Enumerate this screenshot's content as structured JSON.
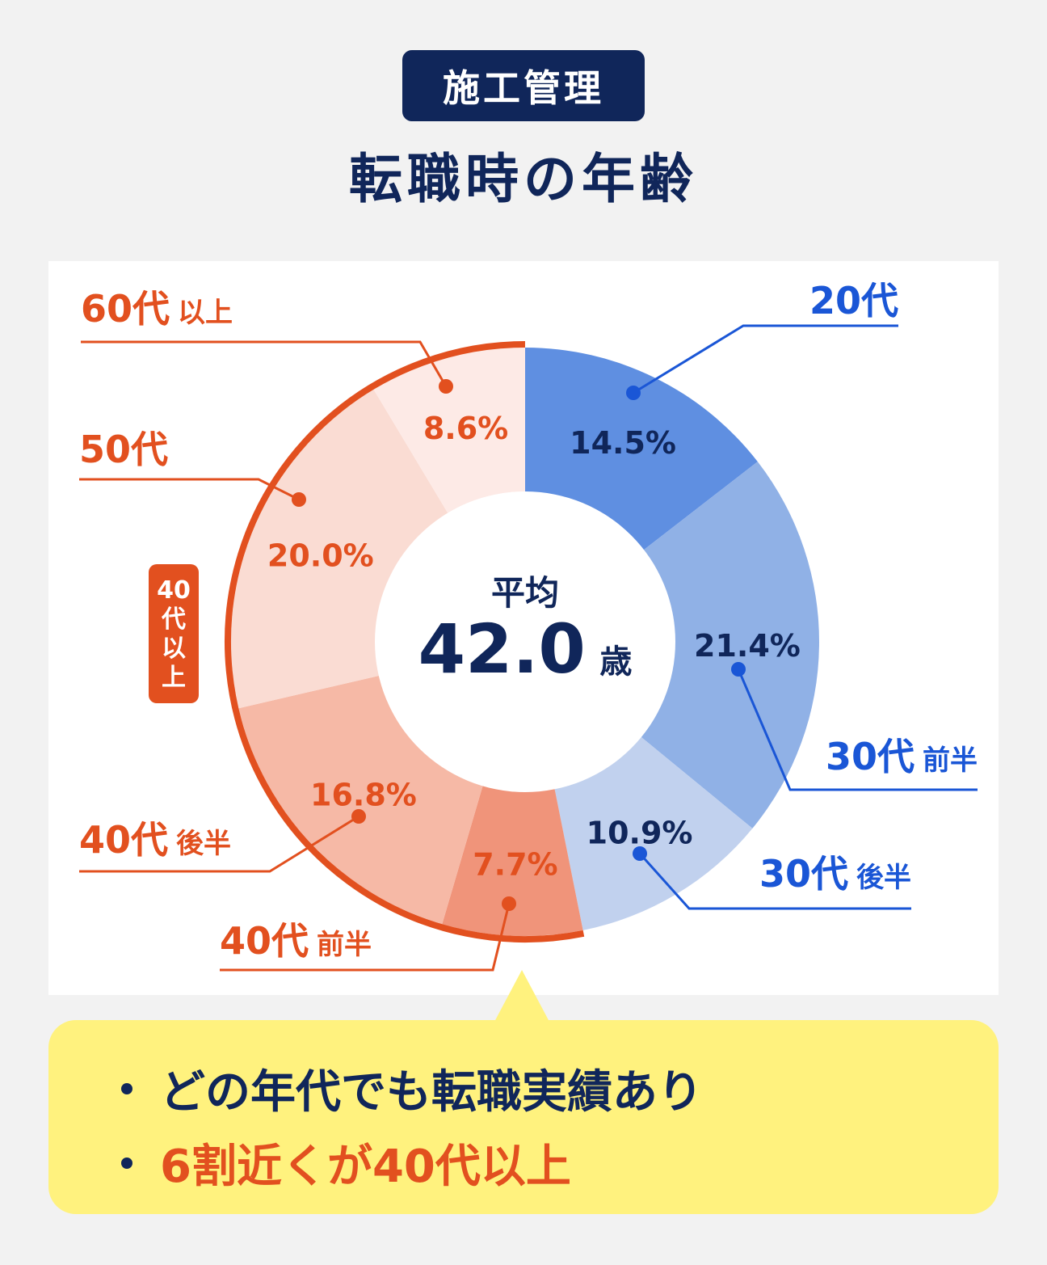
{
  "header": {
    "tag": "施工管理",
    "title": "転職時の年齢"
  },
  "chart_data": {
    "type": "pie",
    "categories": [
      "20代",
      "30代 前半",
      "30代 後半",
      "40代 前半",
      "40代 後半",
      "50代",
      "60代 以上"
    ],
    "values": [
      14.5,
      21.4,
      10.9,
      7.7,
      16.8,
      20.0,
      8.6
    ],
    "value_labels": [
      "14.5%",
      "21.4%",
      "10.9%",
      "7.7%",
      "16.8%",
      "20.0%",
      "8.6%"
    ],
    "label_main": [
      "20代",
      "30代",
      "30代",
      "40代",
      "40代",
      "50代",
      "60代"
    ],
    "label_sub": [
      "",
      "前半",
      "後半",
      "前半",
      "後半",
      "",
      "以上"
    ],
    "colors": [
      "#5f8fe1",
      "#90b1e6",
      "#c1d1ee",
      "#f0947a",
      "#f6b9a6",
      "#fadcd3",
      "#fdeae6"
    ],
    "label_colors": [
      "#10265a",
      "#10265a",
      "#10265a",
      "#e2501f",
      "#e2501f",
      "#e2501f",
      "#e2501f"
    ],
    "leader_colors": [
      "#1a56d6",
      "#1a56d6",
      "#1a56d6",
      "#e2501f",
      "#e2501f",
      "#e2501f",
      "#e2501f"
    ],
    "center": {
      "label": "平均",
      "value": "42.0",
      "unit": "歳"
    },
    "group_label": "40代以上",
    "group_color": "#e2501f"
  },
  "summary": {
    "points": [
      "どの年代でも転職実績あり",
      "6割近くが40代以上"
    ]
  }
}
